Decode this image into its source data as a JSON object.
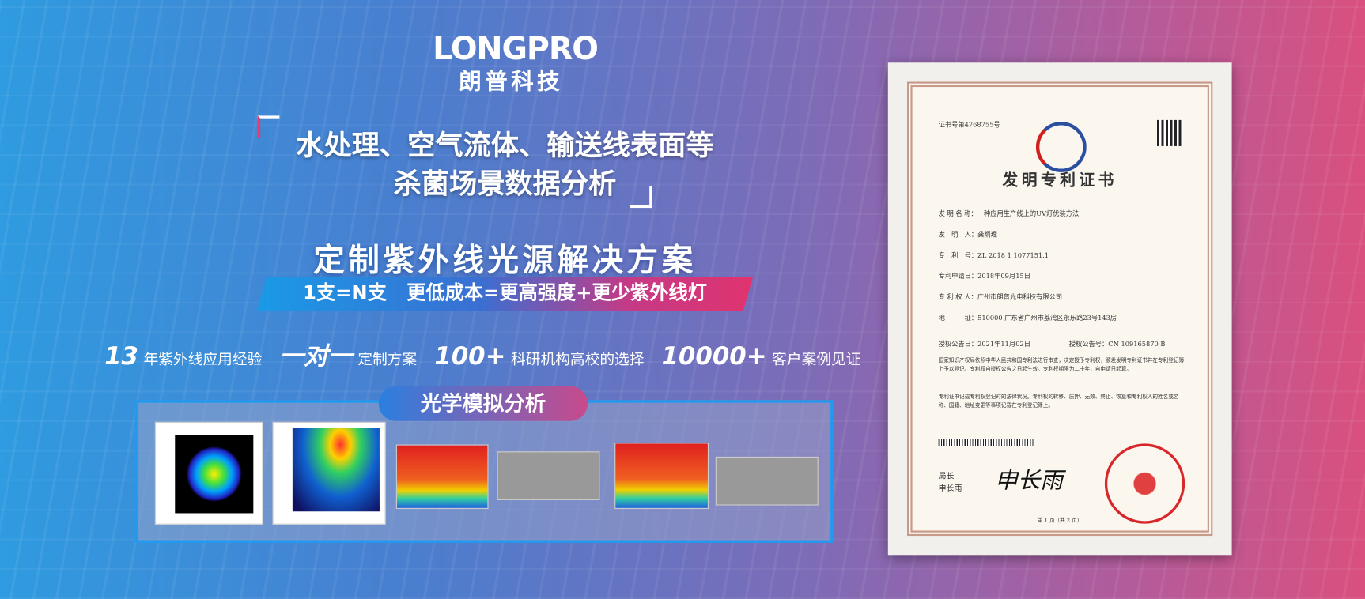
{
  "logo": {
    "brand": "LONGPRO",
    "name": "朗普科技"
  },
  "headline": {
    "lines": [
      "水处理、空气流体、输送线表面等",
      "杀菌场景数据分析"
    ]
  },
  "solution": {
    "title": "定制紫外线光源解决方案",
    "tagline": "1支=N支   更低成本=更高强度+更少紫外线灯"
  },
  "features": [
    {
      "number": "13",
      "text": "年紫外线应用经验"
    },
    {
      "number": "一对一",
      "text": "定制方案"
    },
    {
      "number": "100+",
      "text": "科研机构高校的选择"
    },
    {
      "number": "10000+",
      "text": "客户案例见证"
    }
  ],
  "simulation": {
    "title": "光学模拟分析"
  },
  "certificate": {
    "number": "证书号第4768755号",
    "title": "发明专利证书",
    "fields": [
      "发 明 名 称：一种应用生产线上的UV灯优装方法",
      "发　明　人：龚炯理",
      "专　利　号：ZL 2018 1 1077151.1",
      "专利申请日：2018年09月15日",
      "专 利 权 人：广州市朗普光电科技有限公司",
      "地　　　址：510000 广东省广州市荔湾区永乐路23号143房"
    ],
    "grant_date": "授权公告日：2021年11月02日",
    "grant_number": "授权公告号：CN 109165870 B",
    "paragraphs": [
      "国家知识产权局依照中华人民共和国专利法进行审查，决定授予专利权，颁发发明专利证书并在专利登记簿上予以登记。专利权自授权公告之日起生效。专利权期限为二十年，自申请日起算。",
      "专利证书记载专利权登记时的法律状况。专利权的转移、质押、无效、终止、恢复和专利权人的姓名或名称、国籍、地址变更等事项记载在专利登记簿上。"
    ],
    "signature_title": "局长",
    "signer": "申长雨",
    "page": "第 1 页（共 2 页）"
  }
}
